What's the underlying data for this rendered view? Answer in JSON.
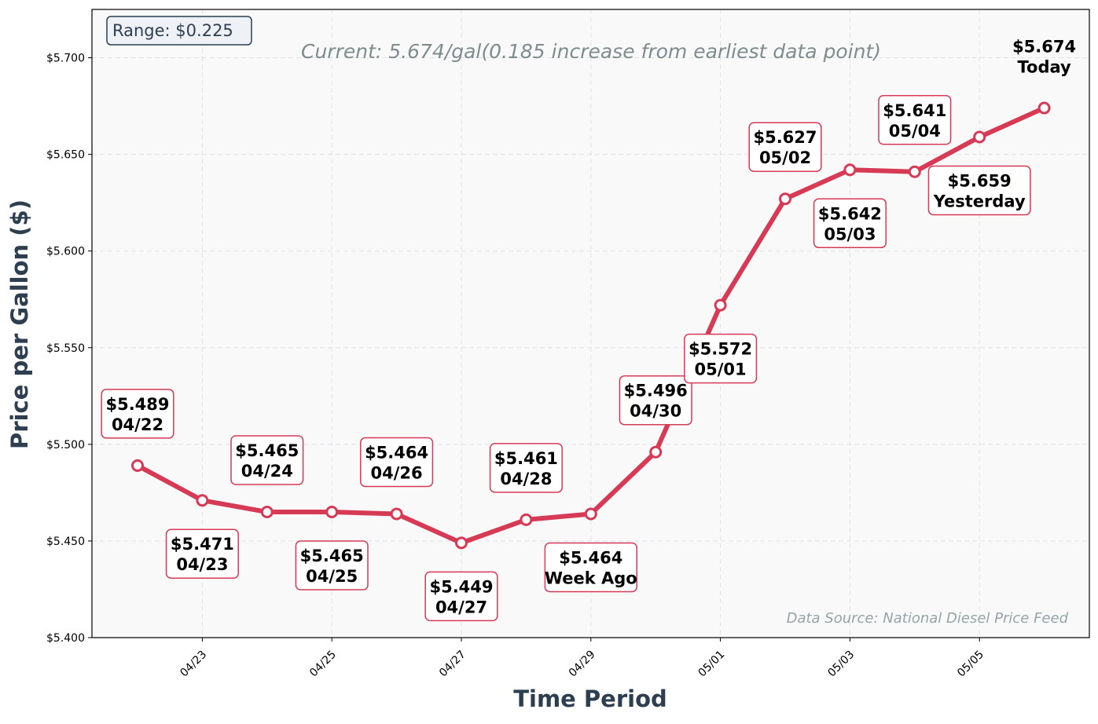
{
  "chart_data": {
    "type": "line",
    "subtitle": "Current: 5.674/gal(0.185 increase from earliest data point)",
    "range_box": "Range: $0.225",
    "source_note": "Data Source: National Diesel Price Feed",
    "xlabel": "Time Period",
    "ylabel": "Price per Gallon ($)",
    "ylim": [
      5.4,
      5.725
    ],
    "grid": true,
    "line_color": "#d63a55",
    "plot_background": "#f9f9fa",
    "x": [
      "04/22",
      "04/23",
      "04/24",
      "04/25",
      "04/26",
      "04/27",
      "04/28",
      "04/29",
      "04/30",
      "05/01",
      "05/02",
      "05/03",
      "05/04",
      "05/05",
      "05/06"
    ],
    "values": [
      5.489,
      5.471,
      5.465,
      5.465,
      5.464,
      5.449,
      5.461,
      5.464,
      5.496,
      5.572,
      5.627,
      5.642,
      5.641,
      5.659,
      5.674
    ],
    "point_labels": [
      {
        "price": "$5.489",
        "tag": "04/22",
        "placement": "above"
      },
      {
        "price": "$5.471",
        "tag": "04/23",
        "placement": "below"
      },
      {
        "price": "$5.465",
        "tag": "04/24",
        "placement": "above"
      },
      {
        "price": "$5.465",
        "tag": "04/25",
        "placement": "below"
      },
      {
        "price": "$5.464",
        "tag": "04/26",
        "placement": "above"
      },
      {
        "price": "$5.449",
        "tag": "04/27",
        "placement": "below"
      },
      {
        "price": "$5.461",
        "tag": "04/28",
        "placement": "above"
      },
      {
        "price": "$5.464",
        "tag": "Week Ago",
        "placement": "below"
      },
      {
        "price": "$5.496",
        "tag": "04/30",
        "placement": "above"
      },
      {
        "price": "$5.572",
        "tag": "05/01",
        "placement": "below"
      },
      {
        "price": "$5.627",
        "tag": "05/02",
        "placement": "above"
      },
      {
        "price": "$5.642",
        "tag": "05/03",
        "placement": "below"
      },
      {
        "price": "$5.641",
        "tag": "05/04",
        "placement": "above"
      },
      {
        "price": "$5.659",
        "tag": "Yesterday",
        "placement": "below"
      },
      {
        "price": "$5.674",
        "tag": "Today",
        "placement": "above-plain"
      }
    ],
    "x_ticks": [
      "04/23",
      "04/25",
      "04/27",
      "04/29",
      "05/01",
      "05/03",
      "05/05"
    ],
    "y_ticks": [
      "$5.400",
      "$5.450",
      "$5.500",
      "$5.550",
      "$5.600",
      "$5.650",
      "$5.700"
    ]
  }
}
